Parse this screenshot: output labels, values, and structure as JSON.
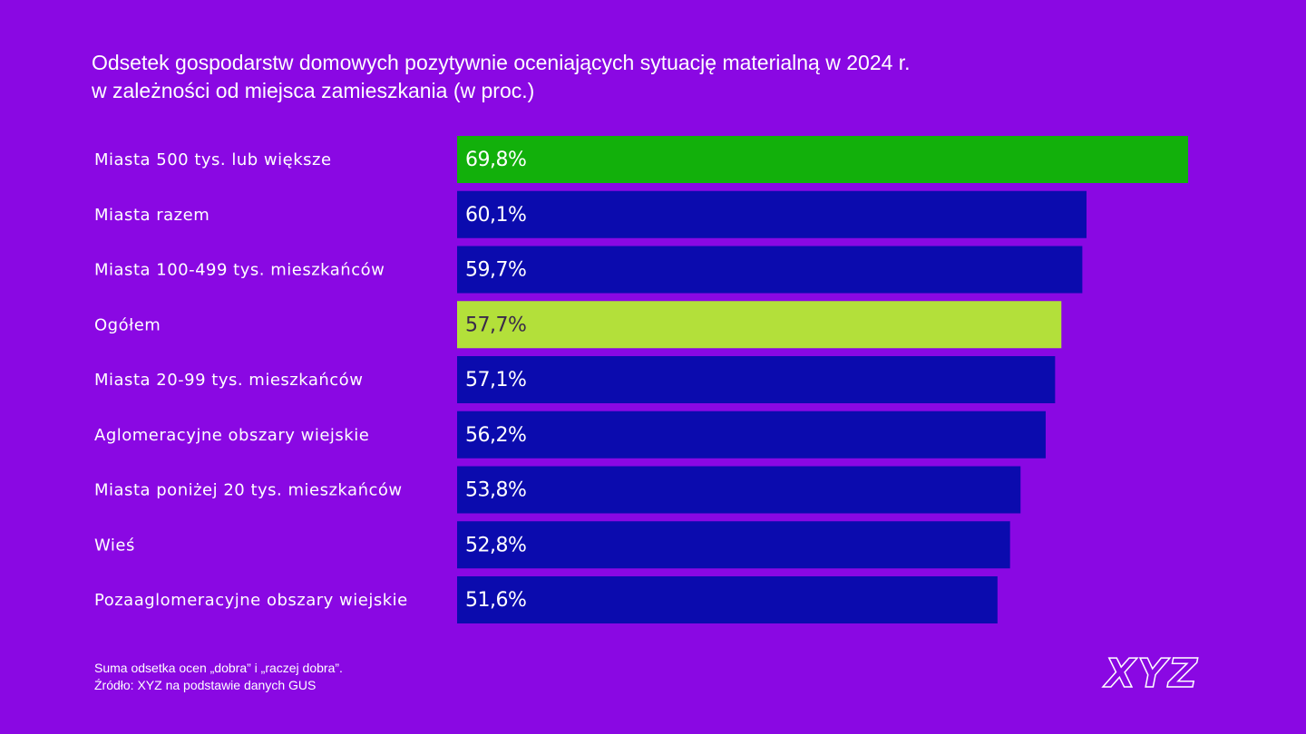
{
  "chart_data": {
    "type": "bar",
    "orientation": "horizontal",
    "title": "Odsetek gospodarstw domowych pozytywnie oceniających sytuację materialną w 2024 r.\nw zależności od miejsca zamieszkania (w proc.)",
    "categories": [
      "Miasta 500 tys. lub większe",
      "Miasta razem",
      "Miasta 100-499 tys. mieszkańców",
      "Ogółem",
      "Miasta 20-99 tys. mieszkańców",
      "Aglomeracyjne obszary wiejskie",
      "Miasta poniżej 20 tys. mieszkańców",
      "Wieś",
      "Pozaaglomeracyjne obszary wiejskie"
    ],
    "values": [
      69.8,
      60.1,
      59.7,
      57.7,
      57.1,
      56.2,
      53.8,
      52.8,
      51.6
    ],
    "value_labels": [
      "69,8%",
      "60,1%",
      "59,7%",
      "57,7%",
      "57,1%",
      "56,2%",
      "53,8%",
      "52,8%",
      "51,6%"
    ],
    "colors": [
      "#12b00b",
      "#0b0bae",
      "#0b0bae",
      "#b3e03a",
      "#0b0bae",
      "#0b0bae",
      "#0b0bae",
      "#0b0bae",
      "#0b0bae"
    ],
    "notes": [
      "Suma odsetka ocen „dobra” i „raczej dobra”.",
      "Źródło: XYZ na podstawie danych GUS"
    ],
    "logo": "XYZ"
  }
}
